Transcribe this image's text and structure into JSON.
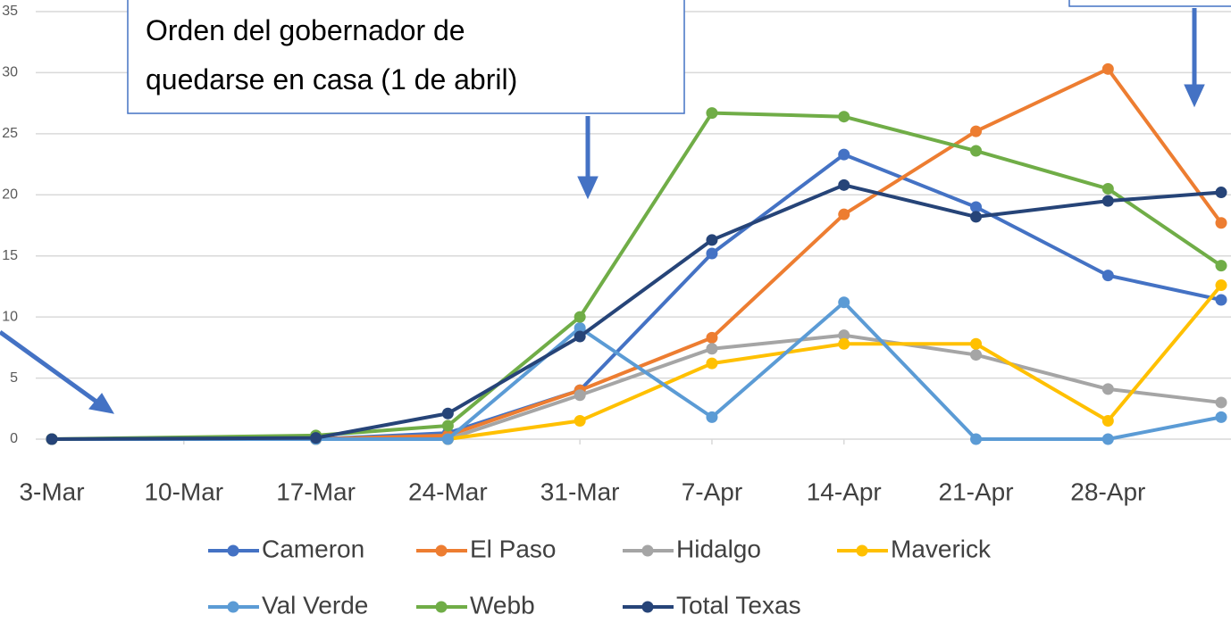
{
  "chart_data": {
    "type": "line",
    "annotation": [
      "Orden del gobernador de",
      "quedarse en casa (1 de abril)"
    ],
    "x": [
      0,
      14,
      21,
      28,
      35,
      42,
      49,
      56,
      62
    ],
    "xlim": [
      0,
      62
    ],
    "xticks": [
      {
        "value": 0,
        "label": "3-Mar"
      },
      {
        "value": 7,
        "label": "10-Mar"
      },
      {
        "value": 14,
        "label": "17-Mar"
      },
      {
        "value": 21,
        "label": "24-Mar"
      },
      {
        "value": 28,
        "label": "31-Mar"
      },
      {
        "value": 35,
        "label": "7-Apr"
      },
      {
        "value": 42,
        "label": "14-Apr"
      },
      {
        "value": 49,
        "label": "21-Apr"
      },
      {
        "value": 56,
        "label": "28-Apr"
      }
    ],
    "ylim": [
      0,
      35
    ],
    "yticks": [
      0,
      5,
      10,
      15,
      20,
      25,
      30,
      35
    ],
    "grid": true,
    "legend": "bottom",
    "series": [
      {
        "name": "Cameron",
        "color": "#4472c4",
        "values": [
          0,
          0,
          0.5,
          4.0,
          15.2,
          23.3,
          19.0,
          13.4,
          11.4
        ]
      },
      {
        "name": "El Paso",
        "color": "#ed7d31",
        "values": [
          0,
          0,
          0.3,
          4.0,
          8.3,
          18.4,
          25.2,
          30.3,
          17.7
        ]
      },
      {
        "name": "Hidalgo",
        "color": "#a5a5a5",
        "values": [
          0,
          0,
          0,
          3.6,
          7.4,
          8.5,
          6.9,
          4.1,
          3.0
        ]
      },
      {
        "name": "Maverick",
        "color": "#ffc000",
        "values": [
          0,
          0,
          0,
          1.5,
          6.2,
          7.8,
          7.8,
          1.5,
          12.6
        ]
      },
      {
        "name": "Val Verde",
        "color": "#5b9bd5",
        "values": [
          0,
          0,
          0,
          9.1,
          1.8,
          11.2,
          0,
          0,
          1.8
        ]
      },
      {
        "name": "Webb",
        "color": "#70ad47",
        "values": [
          0,
          0.3,
          1.1,
          10.0,
          26.7,
          26.4,
          23.6,
          20.5,
          14.2
        ]
      },
      {
        "name": "Total Texas",
        "color": "#264478",
        "values": [
          0,
          0.1,
          2.1,
          8.4,
          16.3,
          20.8,
          18.2,
          19.5,
          20.2
        ]
      }
    ]
  }
}
